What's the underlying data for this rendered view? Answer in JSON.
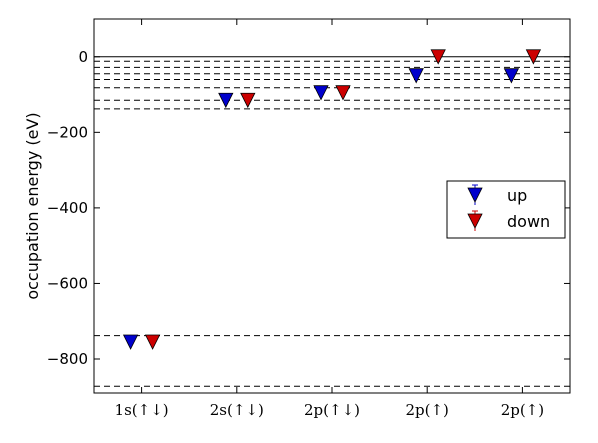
{
  "chart_data": {
    "type": "scatter",
    "title": "",
    "xlabel": "",
    "ylabel": "occupation energy (eV)",
    "categories": [
      "1s(↑↓)",
      "2s(↑↓)",
      "2p(↑↓)",
      "2p(↑)",
      "2p(↑)"
    ],
    "ylim": [
      -890,
      100
    ],
    "yticks": [
      0,
      -200,
      -400,
      -600,
      -800
    ],
    "marker": "triangle-down",
    "series": [
      {
        "name": "up",
        "color": "#0000cc",
        "values": [
          -755,
          -115,
          -95,
          -50,
          -50
        ]
      },
      {
        "name": "down",
        "color": "#cc0000",
        "values": [
          -755,
          -115,
          -95,
          0,
          0
        ]
      }
    ],
    "reference_lines": {
      "solid": [
        0
      ],
      "dashed": [
        -12,
        -28,
        -45,
        -60,
        -82,
        -115,
        -138,
        -738,
        -872
      ]
    },
    "grid": false,
    "legend_placement": "center-right"
  }
}
